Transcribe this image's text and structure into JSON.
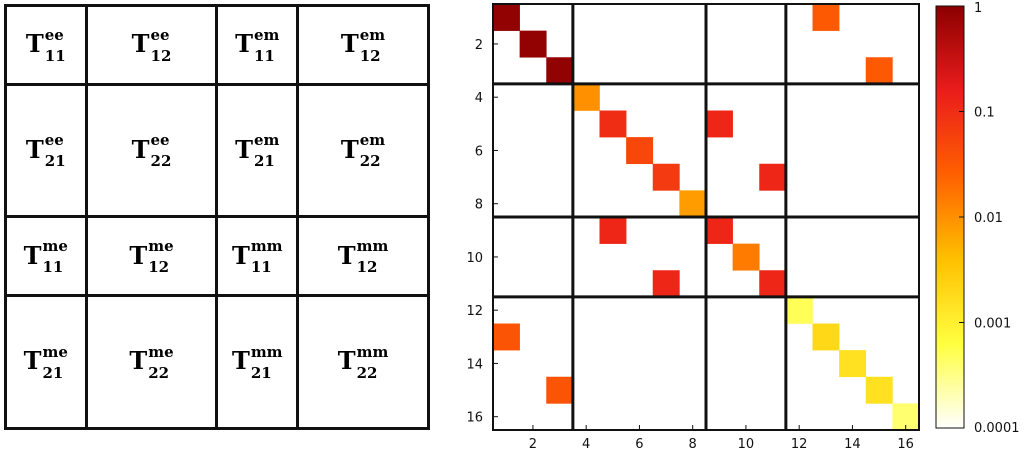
{
  "left_table": {
    "letter": "T",
    "rows": [
      [
        {
          "sup": "ee",
          "sub": "11"
        },
        {
          "sup": "ee",
          "sub": "12"
        },
        {
          "sup": "em",
          "sub": "11"
        },
        {
          "sup": "em",
          "sub": "12"
        }
      ],
      [
        {
          "sup": "ee",
          "sub": "21"
        },
        {
          "sup": "ee",
          "sub": "22"
        },
        {
          "sup": "em",
          "sub": "21"
        },
        {
          "sup": "em",
          "sub": "22"
        }
      ],
      [
        {
          "sup": "me",
          "sub": "11"
        },
        {
          "sup": "me",
          "sub": "12"
        },
        {
          "sup": "mm",
          "sub": "11"
        },
        {
          "sup": "mm",
          "sub": "12"
        }
      ],
      [
        {
          "sup": "me",
          "sub": "21"
        },
        {
          "sup": "me",
          "sub": "22"
        },
        {
          "sup": "mm",
          "sub": "21"
        },
        {
          "sup": "mm",
          "sub": "22"
        }
      ]
    ]
  },
  "chart_data": {
    "type": "heatmap",
    "title": "",
    "xlabel": "",
    "ylabel": "",
    "size": 16,
    "xlim": [
      0.5,
      16.5
    ],
    "ylim": [
      0.5,
      16.5
    ],
    "x_ticks": [
      2,
      4,
      6,
      8,
      10,
      12,
      14,
      16
    ],
    "y_ticks": [
      2,
      4,
      6,
      8,
      10,
      12,
      14,
      16
    ],
    "block_boundaries": [
      3.5,
      8.5,
      11.5
    ],
    "color_scale": "log",
    "colorbar": {
      "min": 0.0001,
      "max": 1,
      "ticks": [
        1,
        0.1,
        0.01,
        0.001,
        0.0001
      ],
      "tick_labels": [
        "1",
        "0.1",
        "0.01",
        "0.001",
        "0.0001"
      ],
      "colors": [
        "#ffffff",
        "#ffff40",
        "#ffc000",
        "#ff6000",
        "#ea1c1c",
        "#8b0000"
      ]
    },
    "cells": [
      {
        "row": 1,
        "col": 1,
        "value": 0.85
      },
      {
        "row": 2,
        "col": 2,
        "value": 0.85
      },
      {
        "row": 3,
        "col": 3,
        "value": 0.85
      },
      {
        "row": 1,
        "col": 13,
        "value": 0.03
      },
      {
        "row": 3,
        "col": 15,
        "value": 0.03
      },
      {
        "row": 4,
        "col": 4,
        "value": 0.01
      },
      {
        "row": 5,
        "col": 5,
        "value": 0.1
      },
      {
        "row": 6,
        "col": 6,
        "value": 0.05
      },
      {
        "row": 7,
        "col": 7,
        "value": 0.07
      },
      {
        "row": 8,
        "col": 8,
        "value": 0.008
      },
      {
        "row": 5,
        "col": 9,
        "value": 0.12
      },
      {
        "row": 7,
        "col": 11,
        "value": 0.12
      },
      {
        "row": 9,
        "col": 5,
        "value": 0.12
      },
      {
        "row": 9,
        "col": 9,
        "value": 0.12
      },
      {
        "row": 10,
        "col": 10,
        "value": 0.015
      },
      {
        "row": 11,
        "col": 7,
        "value": 0.12
      },
      {
        "row": 11,
        "col": 11,
        "value": 0.12
      },
      {
        "row": 12,
        "col": 12,
        "value": 0.0005
      },
      {
        "row": 13,
        "col": 1,
        "value": 0.035
      },
      {
        "row": 13,
        "col": 13,
        "value": 0.002
      },
      {
        "row": 14,
        "col": 14,
        "value": 0.0015
      },
      {
        "row": 15,
        "col": 3,
        "value": 0.035
      },
      {
        "row": 15,
        "col": 15,
        "value": 0.0015
      },
      {
        "row": 16,
        "col": 16,
        "value": 0.0004
      }
    ]
  }
}
